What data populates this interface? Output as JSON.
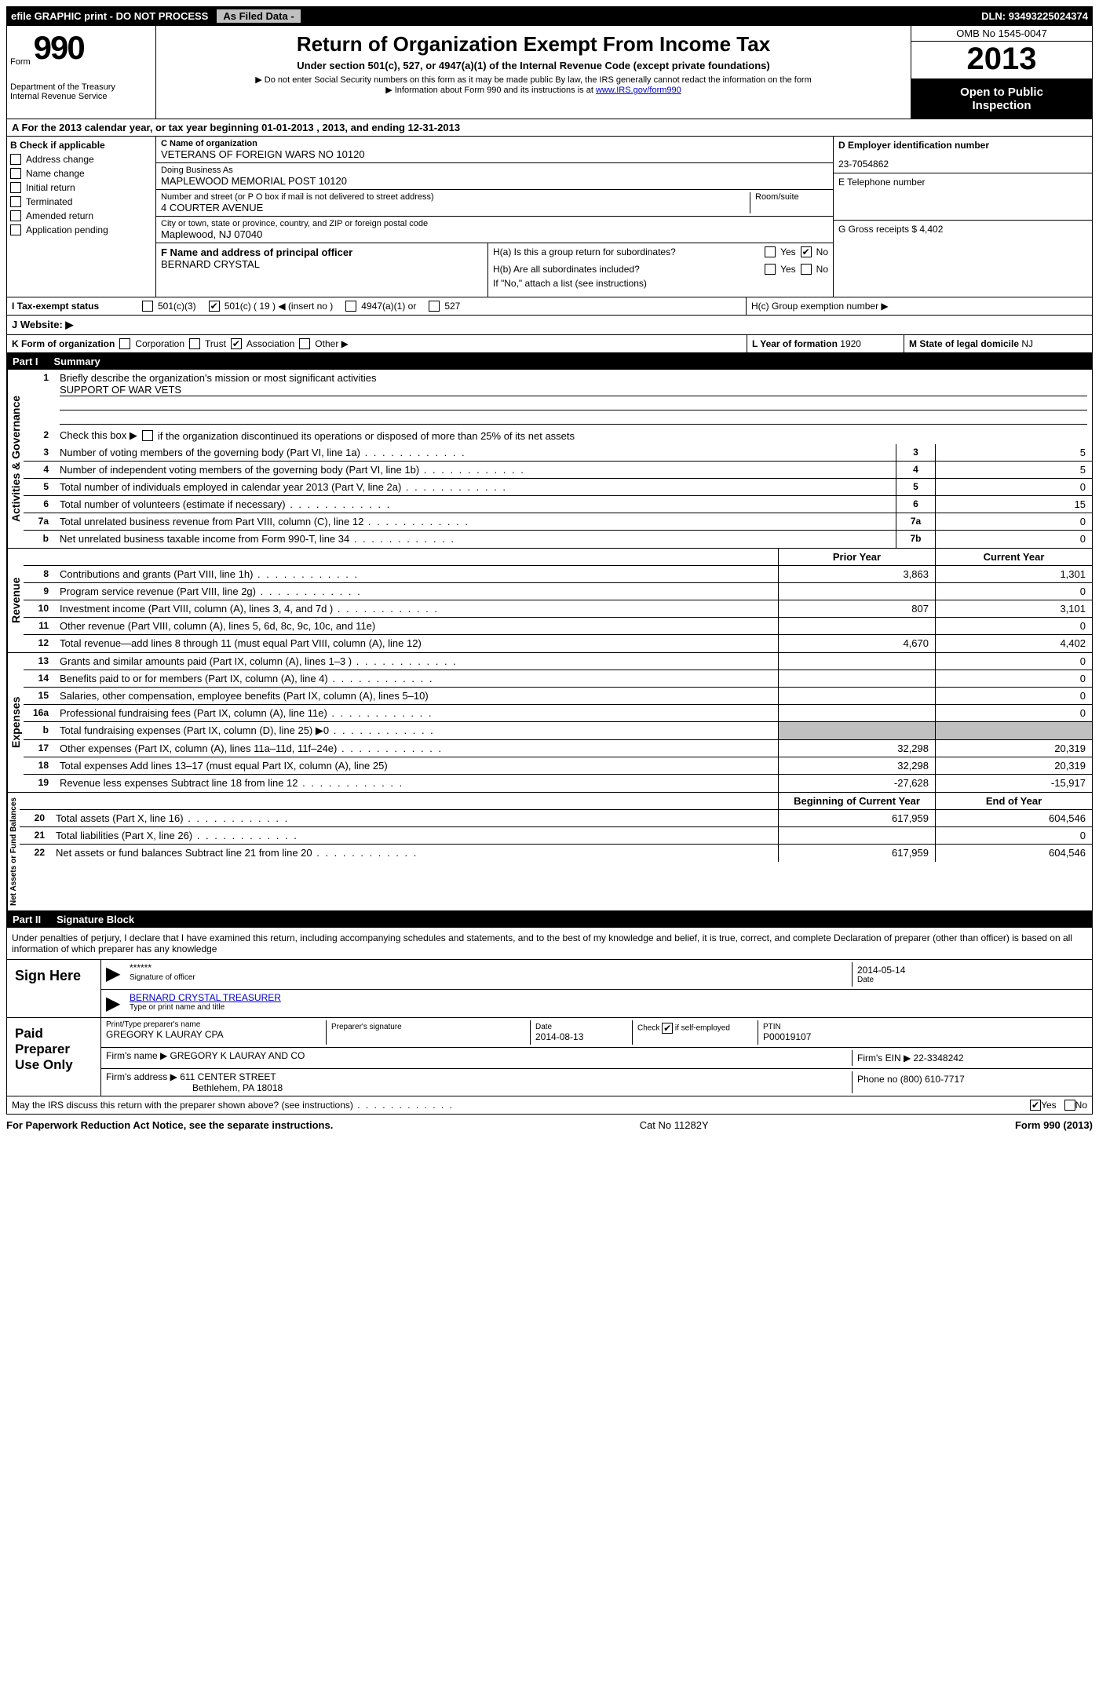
{
  "header": {
    "efile": "efile GRAPHIC print - DO NOT PROCESS",
    "as_filed": "As Filed Data -",
    "dln_label": "DLN:",
    "dln": "93493225024374",
    "form_word": "Form",
    "form_num": "990",
    "title": "Return of Organization Exempt From Income Tax",
    "subtitle": "Under section 501(c), 527, or 4947(a)(1) of the Internal Revenue Code (except private foundations)",
    "warn1": "▶ Do not enter Social Security numbers on this form as it may be made public  By law, the IRS generally cannot redact the information on the form",
    "warn2": "▶ Information about Form 990 and its instructions is at ",
    "irs_link": "www.IRS.gov/form990",
    "dept": "Department of the Treasury",
    "irs": "Internal Revenue Service",
    "omb": "OMB No  1545-0047",
    "year": "2013",
    "open1": "Open to Public",
    "open2": "Inspection"
  },
  "secA": "A  For the 2013 calendar year, or tax year beginning 01-01-2013     , 2013, and ending 12-31-2013",
  "secB": {
    "title": "B  Check if applicable",
    "items": [
      "Address change",
      "Name change",
      "Initial return",
      "Terminated",
      "Amended return",
      "Application pending"
    ]
  },
  "secC": {
    "name_lbl": "C Name of organization",
    "name": "VETERANS OF FOREIGN WARS NO 10120",
    "dba_lbl": "Doing Business As",
    "dba": "MAPLEWOOD MEMORIAL POST 10120",
    "addr_lbl": "Number and street (or P O  box if mail is not delivered to street address)",
    "room_lbl": "Room/suite",
    "addr": "4 COURTER AVENUE",
    "city_lbl": "City or town, state or province, country, and ZIP or foreign postal code",
    "city": "Maplewood, NJ   07040"
  },
  "secD": {
    "lbl": "D Employer identification number",
    "val": "23-7054862"
  },
  "secE": {
    "lbl": "E Telephone number",
    "val": ""
  },
  "secG": {
    "lbl": "G Gross receipts $",
    "val": "4,402"
  },
  "secF": {
    "lbl": "F   Name and address of principal officer",
    "val": "BERNARD CRYSTAL"
  },
  "secH": {
    "ha": "H(a)  Is this a group return for subordinates?",
    "hb": "H(b)  Are all subordinates included?",
    "hb_note": "If \"No,\" attach a list  (see instructions)",
    "hc": "H(c)   Group exemption number ▶",
    "yes": "Yes",
    "no": "No"
  },
  "secI": {
    "lbl": "I   Tax-exempt status",
    "o1": "501(c)(3)",
    "o2": "501(c) ( 19 ) ◀ (insert no )",
    "o3": "4947(a)(1) or",
    "o4": "527"
  },
  "secJ": "J   Website: ▶",
  "secK": {
    "lbl": "K Form of organization",
    "o1": "Corporation",
    "o2": "Trust",
    "o3": "Association",
    "o4": "Other ▶"
  },
  "secL": {
    "lbl": "L Year of formation",
    "val": "1920"
  },
  "secM": {
    "lbl": "M State of legal domicile",
    "val": "NJ"
  },
  "part1": {
    "num": "Part I",
    "title": "Summary",
    "vlabel1": "Activities & Governance",
    "vlabel2": "Revenue",
    "vlabel3": "Expenses",
    "vlabel4": "Net Assets or Fund Balances",
    "l1": "Briefly describe the organization's mission or most significant activities",
    "l1v": "SUPPORT OF WAR VETS",
    "l2": "Check this box ▶     if the organization discontinued its operations or disposed of more than 25% of its net assets",
    "rows_gov": [
      {
        "n": "3",
        "t": "Number of voting members of the governing body (Part VI, line 1a)",
        "b": "3",
        "v": "5"
      },
      {
        "n": "4",
        "t": "Number of independent voting members of the governing body (Part VI, line 1b)",
        "b": "4",
        "v": "5"
      },
      {
        "n": "5",
        "t": "Total number of individuals employed in calendar year 2013 (Part V, line 2a)",
        "b": "5",
        "v": "0"
      },
      {
        "n": "6",
        "t": "Total number of volunteers (estimate if necessary)",
        "b": "6",
        "v": "15"
      },
      {
        "n": "7a",
        "t": "Total unrelated business revenue from Part VIII, column (C), line 12",
        "b": "7a",
        "v": "0"
      },
      {
        "n": "b",
        "t": "Net unrelated business taxable income from Form 990-T, line 34",
        "b": "7b",
        "v": "0"
      }
    ],
    "cols": {
      "prior": "Prior Year",
      "current": "Current Year",
      "boy": "Beginning of Current Year",
      "eoy": "End of Year"
    },
    "rows_rev": [
      {
        "n": "8",
        "t": "Contributions and grants (Part VIII, line 1h)",
        "p": "3,863",
        "c": "1,301"
      },
      {
        "n": "9",
        "t": "Program service revenue (Part VIII, line 2g)",
        "p": "",
        "c": "0"
      },
      {
        "n": "10",
        "t": "Investment income (Part VIII, column (A), lines 3, 4, and 7d )",
        "p": "807",
        "c": "3,101"
      },
      {
        "n": "11",
        "t": "Other revenue (Part VIII, column (A), lines 5, 6d, 8c, 9c, 10c, and 11e)",
        "p": "",
        "c": "0"
      },
      {
        "n": "12",
        "t": "Total revenue—add lines 8 through 11 (must equal Part VIII, column (A), line 12)",
        "p": "4,670",
        "c": "4,402"
      }
    ],
    "rows_exp": [
      {
        "n": "13",
        "t": "Grants and similar amounts paid (Part IX, column (A), lines 1–3 )",
        "p": "",
        "c": "0"
      },
      {
        "n": "14",
        "t": "Benefits paid to or for members (Part IX, column (A), line 4)",
        "p": "",
        "c": "0"
      },
      {
        "n": "15",
        "t": "Salaries, other compensation, employee benefits (Part IX, column (A), lines 5–10)",
        "p": "",
        "c": "0"
      },
      {
        "n": "16a",
        "t": "Professional fundraising fees (Part IX, column (A), line 11e)",
        "p": "",
        "c": "0"
      },
      {
        "n": "b",
        "t": "Total fundraising expenses (Part IX, column (D), line 25) ▶0",
        "p": "shade",
        "c": "shade"
      },
      {
        "n": "17",
        "t": "Other expenses (Part IX, column (A), lines 11a–11d, 11f–24e)",
        "p": "32,298",
        "c": "20,319"
      },
      {
        "n": "18",
        "t": "Total expenses  Add lines 13–17 (must equal Part IX, column (A), line 25)",
        "p": "32,298",
        "c": "20,319"
      },
      {
        "n": "19",
        "t": "Revenue less expenses  Subtract line 18 from line 12",
        "p": "-27,628",
        "c": "-15,917"
      }
    ],
    "rows_net": [
      {
        "n": "20",
        "t": "Total assets (Part X, line 16)",
        "p": "617,959",
        "c": "604,546"
      },
      {
        "n": "21",
        "t": "Total liabilities (Part X, line 26)",
        "p": "",
        "c": "0"
      },
      {
        "n": "22",
        "t": "Net assets or fund balances  Subtract line 21 from line 20",
        "p": "617,959",
        "c": "604,546"
      }
    ]
  },
  "part2": {
    "num": "Part II",
    "title": "Signature Block",
    "perjury": "Under penalties of perjury, I declare that I have examined this return, including accompanying schedules and statements, and to the best of my knowledge and belief, it is true, correct, and complete  Declaration of preparer (other than officer) is based on all information of which preparer has any knowledge",
    "sign_here": "Sign Here",
    "sig_stars": "******",
    "sig_officer_lbl": "Signature of officer",
    "sig_date": "2014-05-14",
    "date_lbl": "Date",
    "officer_name": "BERNARD CRYSTAL TREASURER",
    "officer_name_lbl": "Type or print name and title",
    "paid": "Paid Preparer Use Only",
    "prep_name_lbl": "Print/Type preparer's name",
    "prep_name": "GREGORY K LAURAY CPA",
    "prep_sig_lbl": "Preparer's signature",
    "prep_date_lbl": "Date",
    "prep_date": "2014-08-13",
    "self_emp": "Check       if self-employed",
    "ptin_lbl": "PTIN",
    "ptin": "P00019107",
    "firm_name_lbl": "Firm's name      ▶",
    "firm_name": "GREGORY K LAURAY AND CO",
    "firm_ein_lbl": "Firm's EIN ▶",
    "firm_ein": "22-3348242",
    "firm_addr_lbl": "Firm's address ▶",
    "firm_addr1": "611 CENTER STREET",
    "firm_addr2": "Bethlehem, PA   18018",
    "phone_lbl": "Phone no",
    "phone": "(800) 610-7717",
    "discuss": "May the IRS discuss this return with the preparer shown above? (see instructions)",
    "yes": "Yes",
    "no": "No"
  },
  "footer": {
    "left": "For Paperwork Reduction Act Notice, see the separate instructions.",
    "center": "Cat  No   11282Y",
    "right": "Form 990 (2013)"
  }
}
